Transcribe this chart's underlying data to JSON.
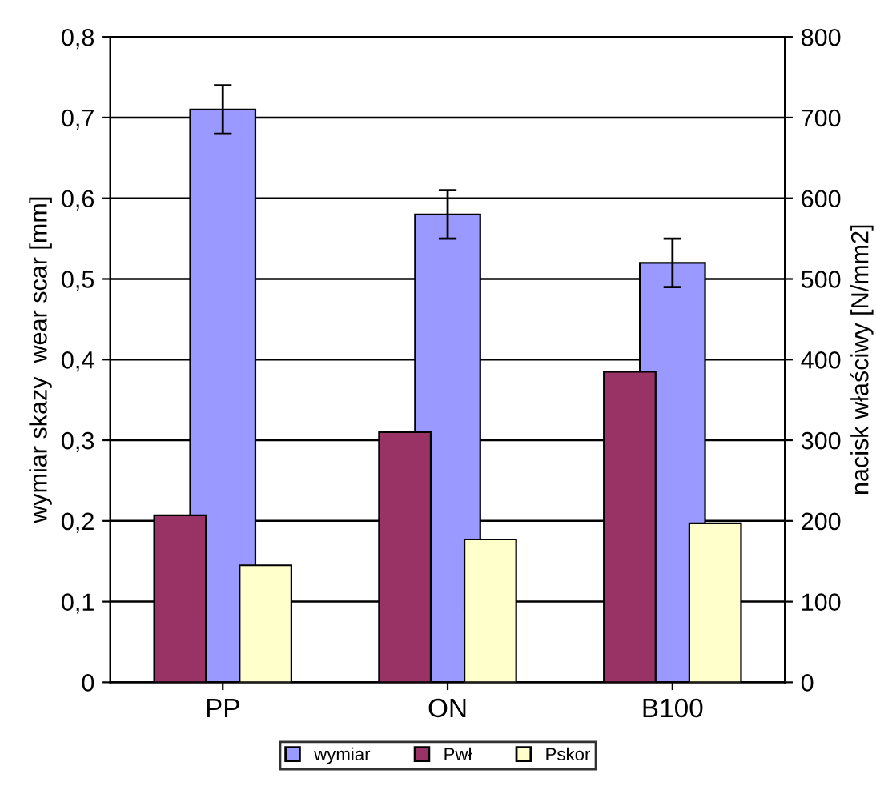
{
  "chart_data": {
    "type": "bar",
    "categories": [
      "PP",
      "ON",
      "B100"
    ],
    "ylabel": "wymiar skazy  wear scar [mm]",
    "y2label": "nacisk właściwy [N/mm2]",
    "ylim": [
      0,
      0.8
    ],
    "yticks": [
      {
        "value": 0,
        "label": "0"
      },
      {
        "value": 0.1,
        "label": "0,1"
      },
      {
        "value": 0.2,
        "label": "0,2"
      },
      {
        "value": 0.3,
        "label": "0,3"
      },
      {
        "value": 0.4,
        "label": "0,4"
      },
      {
        "value": 0.5,
        "label": "0,5"
      },
      {
        "value": 0.6,
        "label": "0,6"
      },
      {
        "value": 0.7,
        "label": "0,7"
      },
      {
        "value": 0.8,
        "label": "0,8"
      }
    ],
    "y2lim": [
      0,
      800
    ],
    "y2ticks": [
      0,
      100,
      200,
      300,
      400,
      500,
      600,
      700,
      800
    ],
    "grid": "y",
    "legend": "bottom",
    "series": [
      {
        "name": "wymiar",
        "color": "#9999ff",
        "values": [
          0.71,
          0.58,
          0.52
        ],
        "errors": [
          0.03,
          0.03,
          0.03
        ]
      },
      {
        "name": "Pwł",
        "color": "#993366",
        "values": [
          207,
          310,
          385
        ],
        "axis": "y2"
      },
      {
        "name": "Pskor",
        "color": "#ffffcc",
        "values": [
          145,
          177,
          197
        ],
        "axis": "y2"
      }
    ]
  }
}
